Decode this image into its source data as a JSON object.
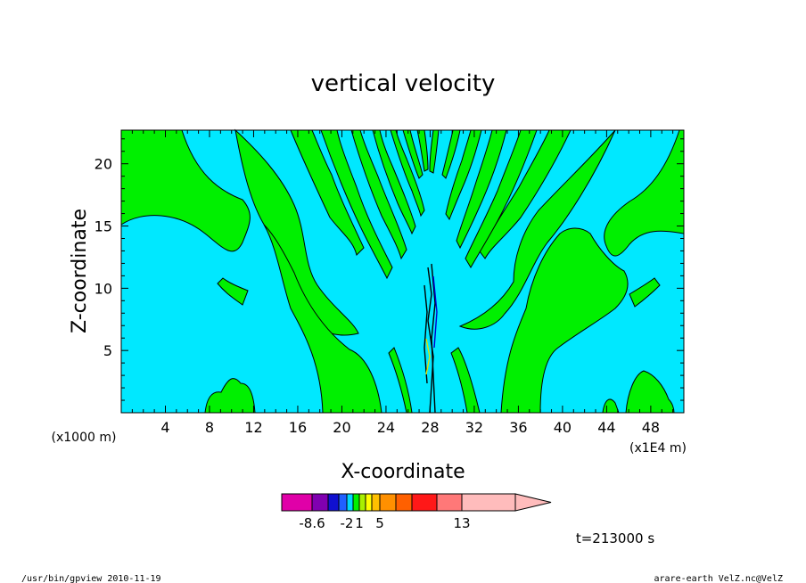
{
  "chart_data": {
    "type": "contour",
    "title": "vertical velocity",
    "xlabel": "X-coordinate",
    "ylabel": "Z-coordinate",
    "x_ticks": [
      "4",
      "8",
      "12",
      "16",
      "20",
      "24",
      "28",
      "32",
      "36",
      "40",
      "44",
      "48"
    ],
    "x_tick_values": [
      4,
      8,
      12,
      16,
      20,
      24,
      28,
      32,
      36,
      40,
      44,
      48
    ],
    "y_ticks": [
      "5",
      "10",
      "15",
      "20"
    ],
    "y_tick_values": [
      5,
      10,
      15,
      20
    ],
    "xlim": [
      0,
      51
    ],
    "ylim": [
      0,
      22.7
    ],
    "x_unit_label": "(x1E4 m)",
    "y_unit_label": "(x1000 m)",
    "time_label": "t=213000 s",
    "colors": {
      "background_field": "#00e8ff",
      "upward_field": "#00f000",
      "contour_line": "#000000"
    },
    "colorbar": {
      "tick_labels": [
        "-8.6",
        "-2",
        "1",
        "5",
        "13"
      ],
      "tick_values": [
        -8.6,
        -2,
        1,
        5,
        13
      ],
      "segments": [
        {
          "color": "#e000a8"
        },
        {
          "color": "#8000b0"
        },
        {
          "color": "#1010d0"
        },
        {
          "color": "#2060ff"
        },
        {
          "color": "#00d8ff"
        },
        {
          "color": "#00f000"
        },
        {
          "color": "#a8f000"
        },
        {
          "color": "#ffff00"
        },
        {
          "color": "#ffc000"
        },
        {
          "color": "#ff9000"
        },
        {
          "color": "#ff6000"
        },
        {
          "color": "#ff1818"
        },
        {
          "color": "#ff7878"
        },
        {
          "color": "#ffbcbc"
        }
      ]
    }
  },
  "footer": {
    "left": "/usr/bin/gpview   2010-11-19",
    "right": "arare-earth_VelZ.nc@VelZ"
  }
}
